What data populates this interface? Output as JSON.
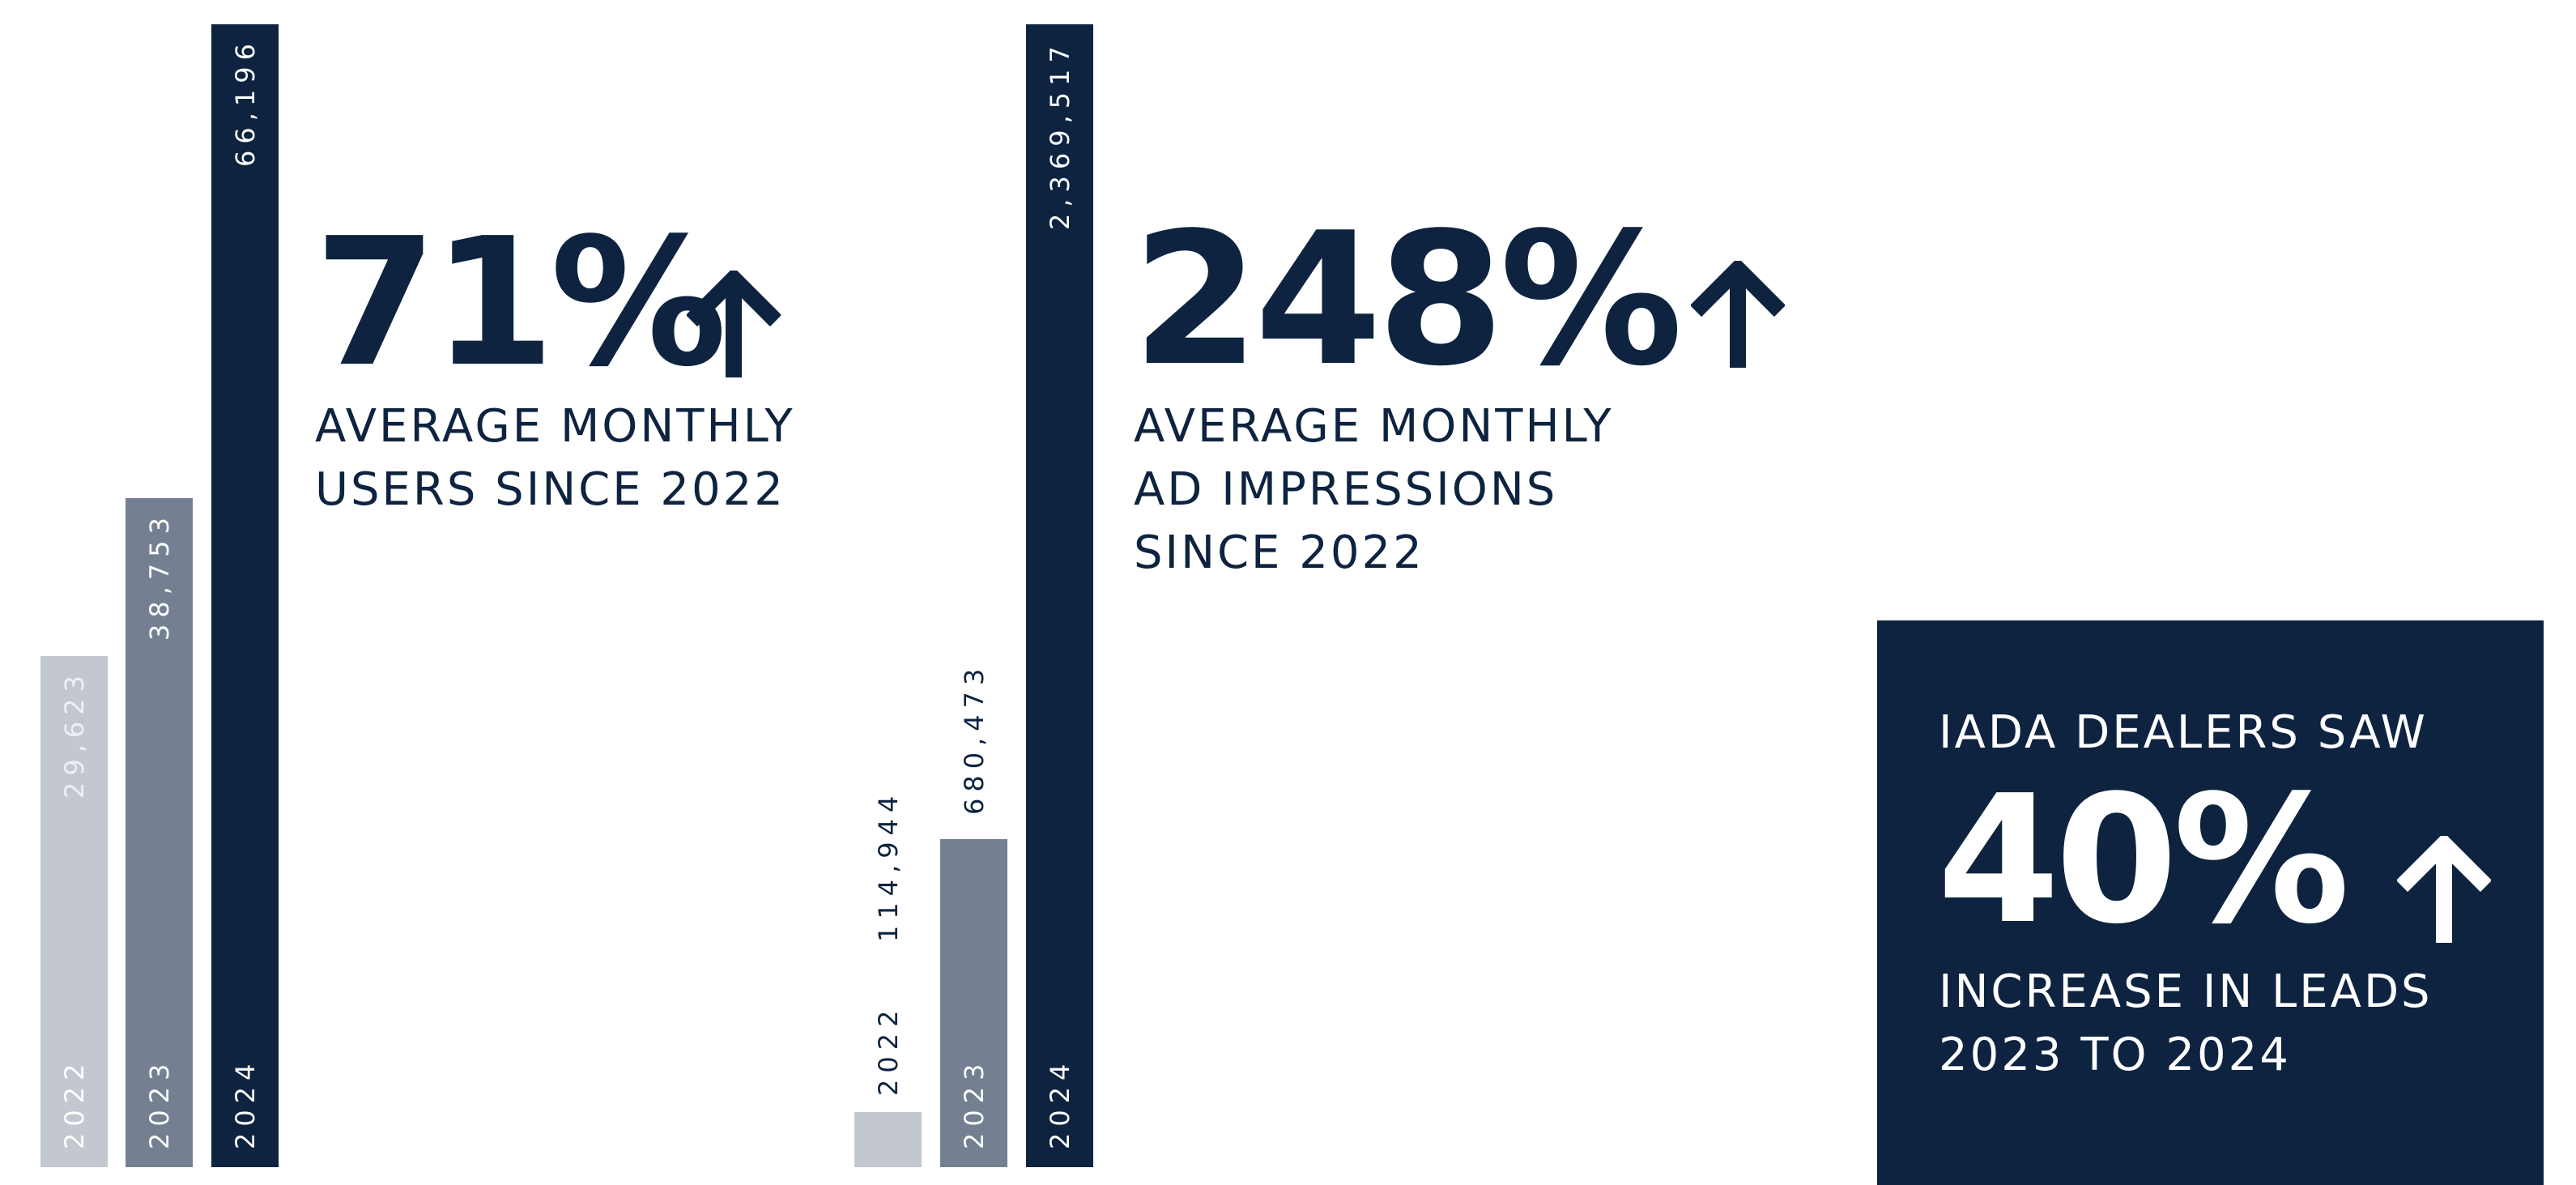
{
  "colors": {
    "navy": "#0d2340",
    "slate": "#748092",
    "light": "#c3c8d0",
    "white": "#ffffff"
  },
  "users": {
    "headline": "71%",
    "caption_lines": [
      "AVERAGE MONTHLY",
      "USERS SINCE 2022"
    ],
    "arrow_icon": "up-arrow-icon"
  },
  "impressions": {
    "headline": "248%",
    "caption_lines": [
      "AVERAGE MONTHLY",
      "AD IMPRESSIONS",
      "SINCE 2022"
    ],
    "arrow_icon": "up-arrow-icon"
  },
  "leads": {
    "intro": "IADA DEALERS SAW",
    "headline": "40%",
    "caption_lines": [
      "INCREASE IN LEADS",
      "2023 TO 2024"
    ],
    "arrow_icon": "up-arrow-icon"
  },
  "chart_data": [
    {
      "type": "bar",
      "categories": [
        "2022",
        "2023",
        "2024"
      ],
      "values": [
        29623,
        38753,
        66196
      ],
      "value_labels": [
        "29,623",
        "38,753",
        "66,196"
      ],
      "bar_colors": [
        "#c3c8d0",
        "#748092",
        "#0d2340"
      ],
      "title": "",
      "xlabel": "",
      "ylabel": "",
      "ylim": [
        0,
        66196
      ],
      "grid": false
    },
    {
      "type": "bar",
      "categories": [
        "2022",
        "2023",
        "2024"
      ],
      "values": [
        114944,
        680473,
        2369517
      ],
      "value_labels": [
        "114,944",
        "680,473",
        "2,369,517"
      ],
      "bar_colors": [
        "#c3c8d0",
        "#748092",
        "#0d2340"
      ],
      "title": "",
      "xlabel": "",
      "ylabel": "",
      "ylim": [
        0,
        2369517
      ],
      "grid": false
    }
  ]
}
